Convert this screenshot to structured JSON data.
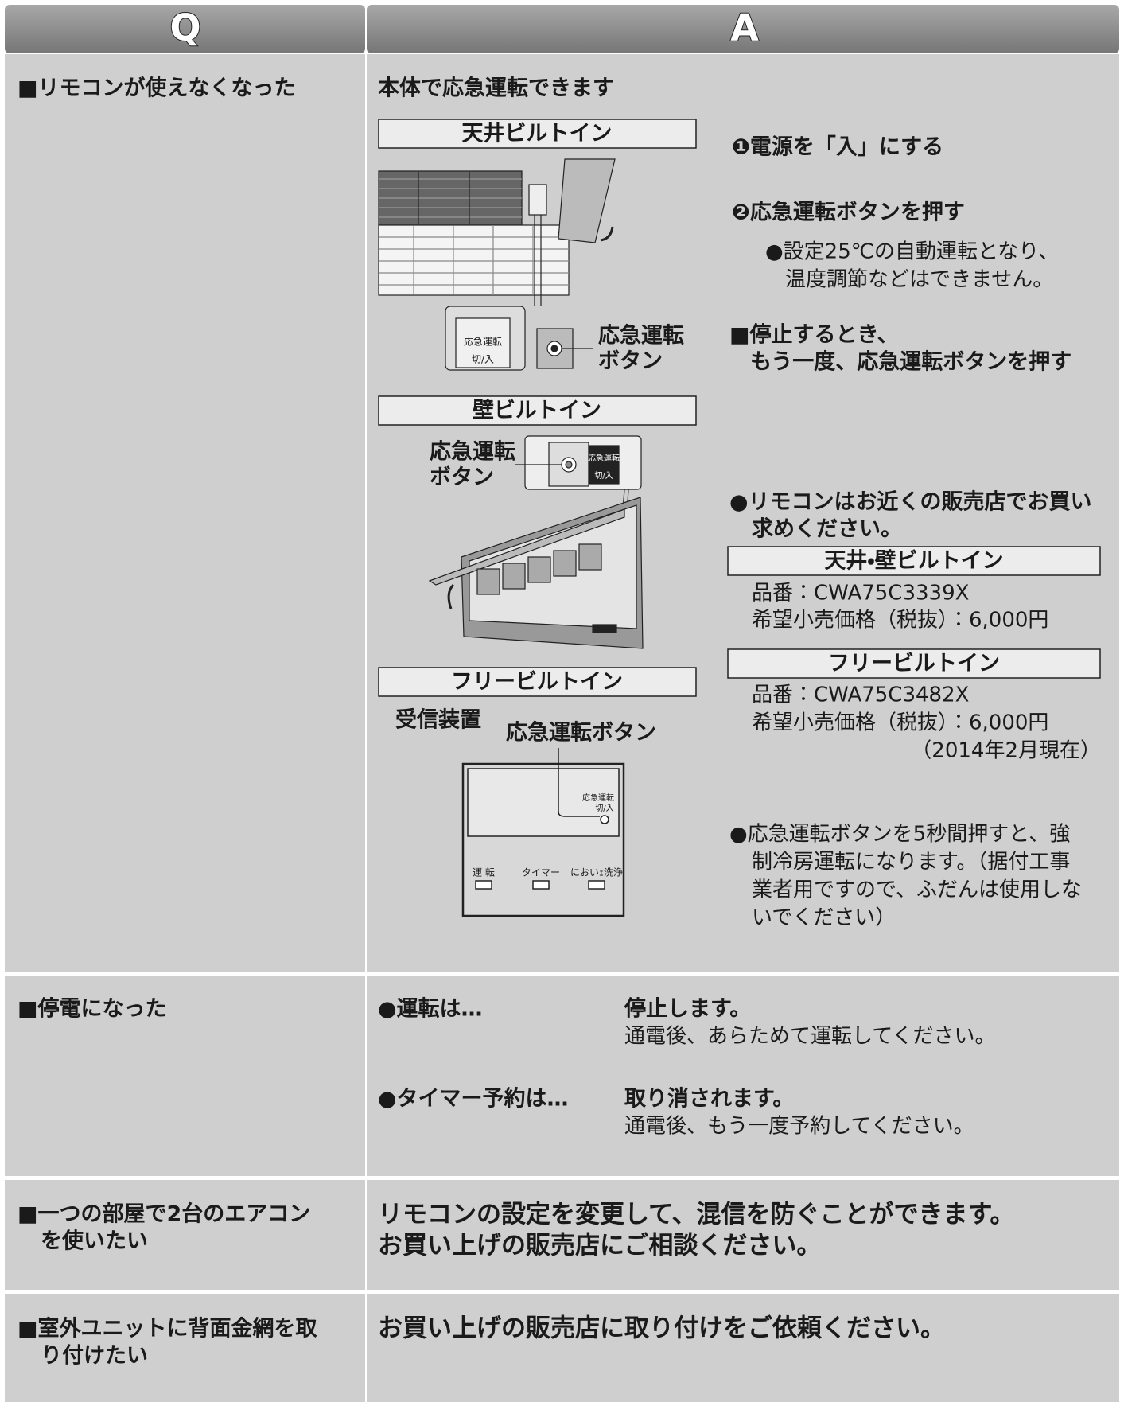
{
  "header": {
    "q": "Q",
    "a": "A"
  },
  "rows": [
    {
      "question": [
        "■リモコンが使えなくなった"
      ],
      "answer": {
        "lead": "本体で応急運転できます",
        "ceiling": {
          "title": "天井ビルトイン",
          "button_label": [
            "応急運転",
            "ボタン"
          ],
          "switch_label": [
            "応急運転",
            "切/入"
          ]
        },
        "wall": {
          "title": "壁ビルトイン",
          "button_label": [
            "応急運転",
            "ボタン"
          ],
          "switch_label": [
            "応急運転",
            "切/入"
          ]
        },
        "free": {
          "title": "フリービルトイン",
          "receiver": "受信装置",
          "button_label": "応急運転ボタン",
          "switch_label": [
            "応急運転",
            "切/入"
          ],
          "indicators": [
            "運 転",
            "タイマー",
            "においｪ洗浄"
          ]
        },
        "steps": [
          "❶電源を「入」にする",
          "❷応急運転ボタンを押す"
        ],
        "step_note": [
          "●設定25℃の自動運転となり、",
          "温度調節などはできません。"
        ],
        "stop": [
          "■停止するとき、",
          "もう一度、応急運転ボタンを押す"
        ],
        "remote": {
          "note": [
            "●リモコンはお近くの販売店でお買い",
            "求めください。"
          ],
          "products": [
            {
              "title": "天井・壁ビルトイン",
              "code": "品番：CWA75C3339X",
              "price": "希望小売価格（税抜）：6,000円"
            },
            {
              "title": "フリービルトイン",
              "code": "品番：CWA75C3482X",
              "price": "希望小売価格（税抜）：6,000円"
            }
          ],
          "as_of": "（2014年2月現在）"
        },
        "warning": [
          "●応急運転ボタンを5秒間押すと、強",
          "制冷房運転になります。（据付工事",
          "業者用ですので、ふだんは使用しな",
          "いでください）"
        ]
      }
    },
    {
      "question": [
        "■停電になった"
      ],
      "answer": {
        "items": [
          {
            "label": "●運転は…",
            "result": "停止します。",
            "detail": "通電後、あらためて運転してください。"
          },
          {
            "label": "●タイマー予約は…",
            "result": "取り消されます。",
            "detail": "通電後、もう一度予約してください。"
          }
        ]
      }
    },
    {
      "question": [
        "■一つの部屋で2台のエアコン",
        "を使いたい"
      ],
      "answer": {
        "lines": [
          "リモコンの設定を変更して、混信を防ぐことができます。",
          "お買い上げの販売店にご相談ください。"
        ]
      }
    },
    {
      "question": [
        "■室外ユニットに背面金網を取",
        "り付けたい"
      ],
      "answer": {
        "lines": [
          "お買い上げの販売店に取り付けをご依頼ください。"
        ]
      }
    }
  ]
}
